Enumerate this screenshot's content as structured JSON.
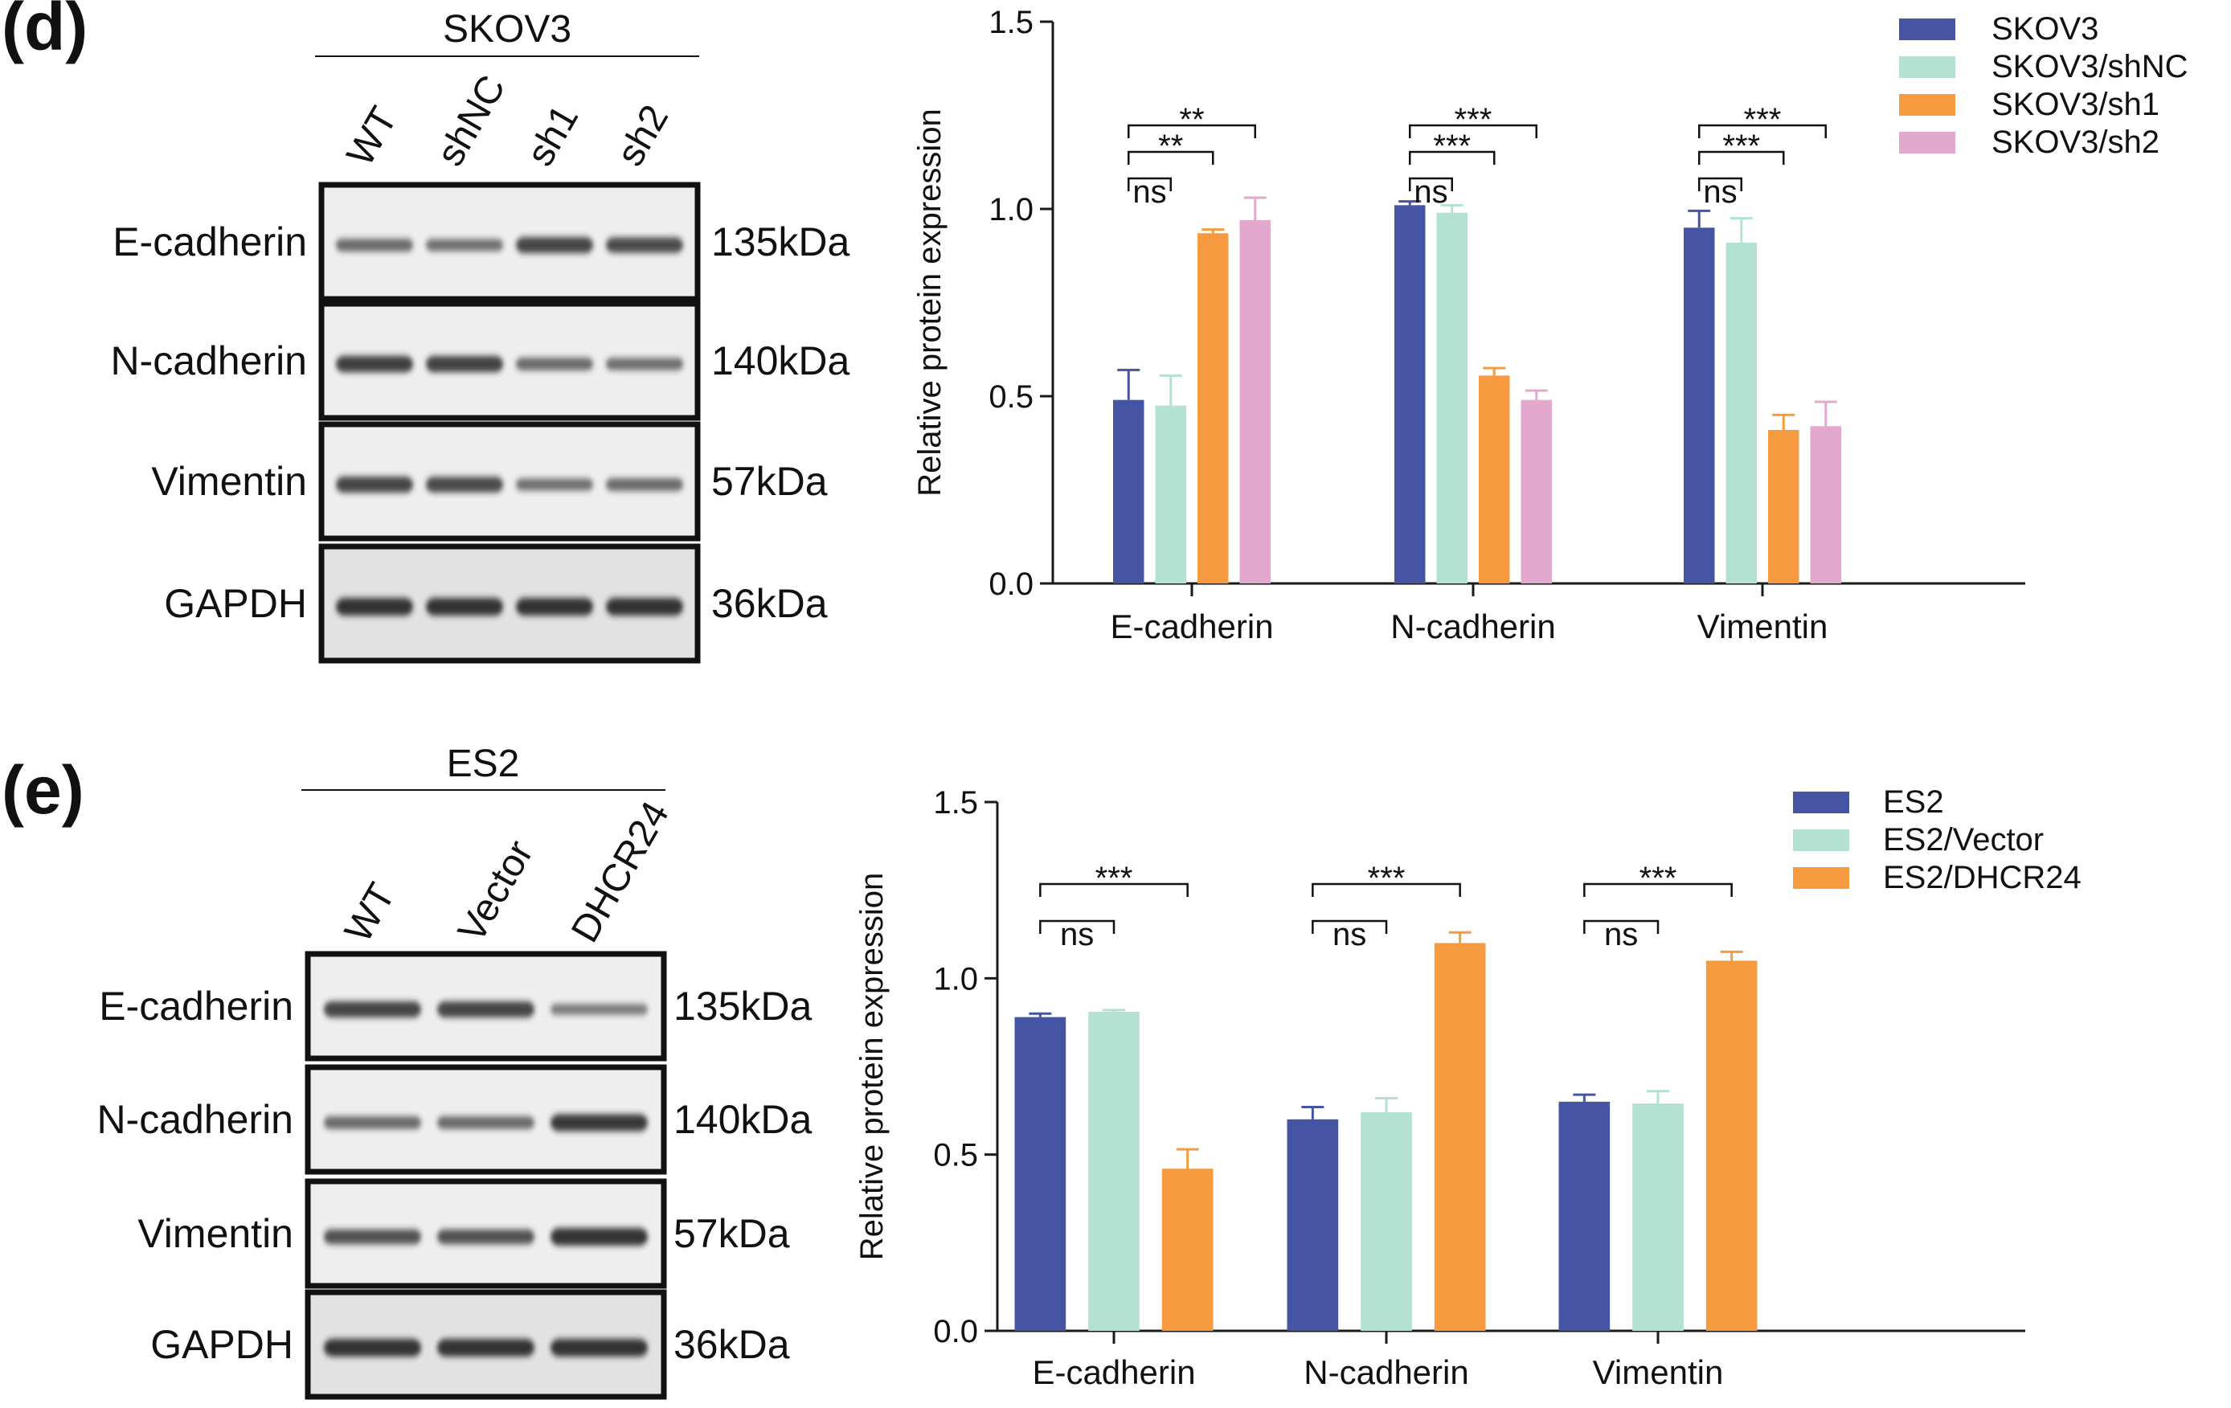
{
  "colors": {
    "blue": "#4554A3",
    "mint": "#B3E2D2",
    "orange": "#F59A3F",
    "pink": "#E2A8CD",
    "axis": "#1a1a1a",
    "blot_bg": "#eeeeee",
    "band": "#2a2a2a"
  },
  "panels": [
    {
      "letter": "(d)",
      "cell_line": "SKOV3",
      "lanes": [
        "WT",
        "shNC",
        "sh1",
        "sh2"
      ],
      "blots": [
        {
          "protein": "E-cadherin",
          "size": "135kDa",
          "intensity": [
            0.55,
            0.5,
            0.85,
            0.8
          ]
        },
        {
          "protein": "N-cadherin",
          "size": "140kDa",
          "intensity": [
            0.9,
            0.88,
            0.55,
            0.52
          ]
        },
        {
          "protein": "Vimentin",
          "size": "57kDa",
          "intensity": [
            0.85,
            0.82,
            0.5,
            0.55
          ]
        },
        {
          "protein": "GAPDH",
          "size": "36kDa",
          "intensity": [
            1.0,
            1.0,
            1.0,
            1.0
          ]
        }
      ]
    },
    {
      "letter": "(e)",
      "cell_line": "ES2",
      "lanes": [
        "WT",
        "Vector",
        "DHCR24"
      ],
      "blots": [
        {
          "protein": "E-cadherin",
          "size": "135kDa",
          "intensity": [
            0.85,
            0.85,
            0.4
          ]
        },
        {
          "protein": "N-cadherin",
          "size": "140kDa",
          "intensity": [
            0.55,
            0.55,
            0.95
          ]
        },
        {
          "protein": "Vimentin",
          "size": "57kDa",
          "intensity": [
            0.75,
            0.75,
            1.0
          ]
        },
        {
          "protein": "GAPDH",
          "size": "36kDa",
          "intensity": [
            1.0,
            1.0,
            1.0
          ]
        }
      ]
    }
  ],
  "chart_data": [
    {
      "type": "bar",
      "ylabel": "Relative protein expression",
      "ylim": [
        0,
        1.5
      ],
      "yticks": [
        "0.0",
        "0.5",
        "1.0",
        "1.5"
      ],
      "categories": [
        "E-cadherin",
        "N-cadherin",
        "Vimentin"
      ],
      "legend_position": "top-right",
      "series": [
        {
          "name": "SKOV3",
          "color": "#4554A3",
          "values": [
            0.49,
            1.01,
            0.95
          ],
          "errors": [
            0.08,
            0.01,
            0.045
          ]
        },
        {
          "name": "SKOV3/shNC",
          "color": "#B3E2D2",
          "values": [
            0.475,
            0.99,
            0.91
          ],
          "errors": [
            0.08,
            0.02,
            0.065
          ]
        },
        {
          "name": "SKOV3/sh1",
          "color": "#F59A3F",
          "values": [
            0.935,
            0.555,
            0.41
          ],
          "errors": [
            0.01,
            0.02,
            0.04
          ]
        },
        {
          "name": "SKOV3/sh2",
          "color": "#E2A8CD",
          "values": [
            0.97,
            0.49,
            0.42
          ],
          "errors": [
            0.06,
            0.025,
            0.065
          ]
        }
      ],
      "significance": [
        {
          "category": 0,
          "from": 0,
          "to": 1,
          "label": "ns"
        },
        {
          "category": 0,
          "from": 0,
          "to": 2,
          "label": "**"
        },
        {
          "category": 0,
          "from": 0,
          "to": 3,
          "label": "**"
        },
        {
          "category": 1,
          "from": 0,
          "to": 1,
          "label": "ns"
        },
        {
          "category": 1,
          "from": 0,
          "to": 2,
          "label": "***"
        },
        {
          "category": 1,
          "from": 0,
          "to": 3,
          "label": "***"
        },
        {
          "category": 2,
          "from": 0,
          "to": 1,
          "label": "ns"
        },
        {
          "category": 2,
          "from": 0,
          "to": 2,
          "label": "***"
        },
        {
          "category": 2,
          "from": 0,
          "to": 3,
          "label": "***"
        }
      ]
    },
    {
      "type": "bar",
      "ylabel": "Relative protein expression",
      "ylim": [
        0,
        1.5
      ],
      "yticks": [
        "0.0",
        "0.5",
        "1.0",
        "1.5"
      ],
      "categories": [
        "E-cadherin",
        "N-cadherin",
        "Vimentin"
      ],
      "legend_position": "top-right",
      "series": [
        {
          "name": "ES2",
          "color": "#4554A3",
          "values": [
            0.89,
            0.6,
            0.65
          ],
          "errors": [
            0.01,
            0.035,
            0.02
          ]
        },
        {
          "name": "ES2/Vector",
          "color": "#B3E2D2",
          "values": [
            0.905,
            0.62,
            0.645
          ],
          "errors": [
            0.005,
            0.04,
            0.035
          ]
        },
        {
          "name": "ES2/DHCR24",
          "color": "#F59A3F",
          "values": [
            0.46,
            1.1,
            1.05
          ],
          "errors": [
            0.055,
            0.03,
            0.025
          ]
        }
      ],
      "significance": [
        {
          "category": 0,
          "from": 0,
          "to": 1,
          "label": "ns"
        },
        {
          "category": 0,
          "from": 0,
          "to": 2,
          "label": "***"
        },
        {
          "category": 1,
          "from": 0,
          "to": 1,
          "label": "ns"
        },
        {
          "category": 1,
          "from": 0,
          "to": 2,
          "label": "***"
        },
        {
          "category": 2,
          "from": 0,
          "to": 1,
          "label": "ns"
        },
        {
          "category": 2,
          "from": 0,
          "to": 2,
          "label": "***"
        }
      ]
    }
  ]
}
